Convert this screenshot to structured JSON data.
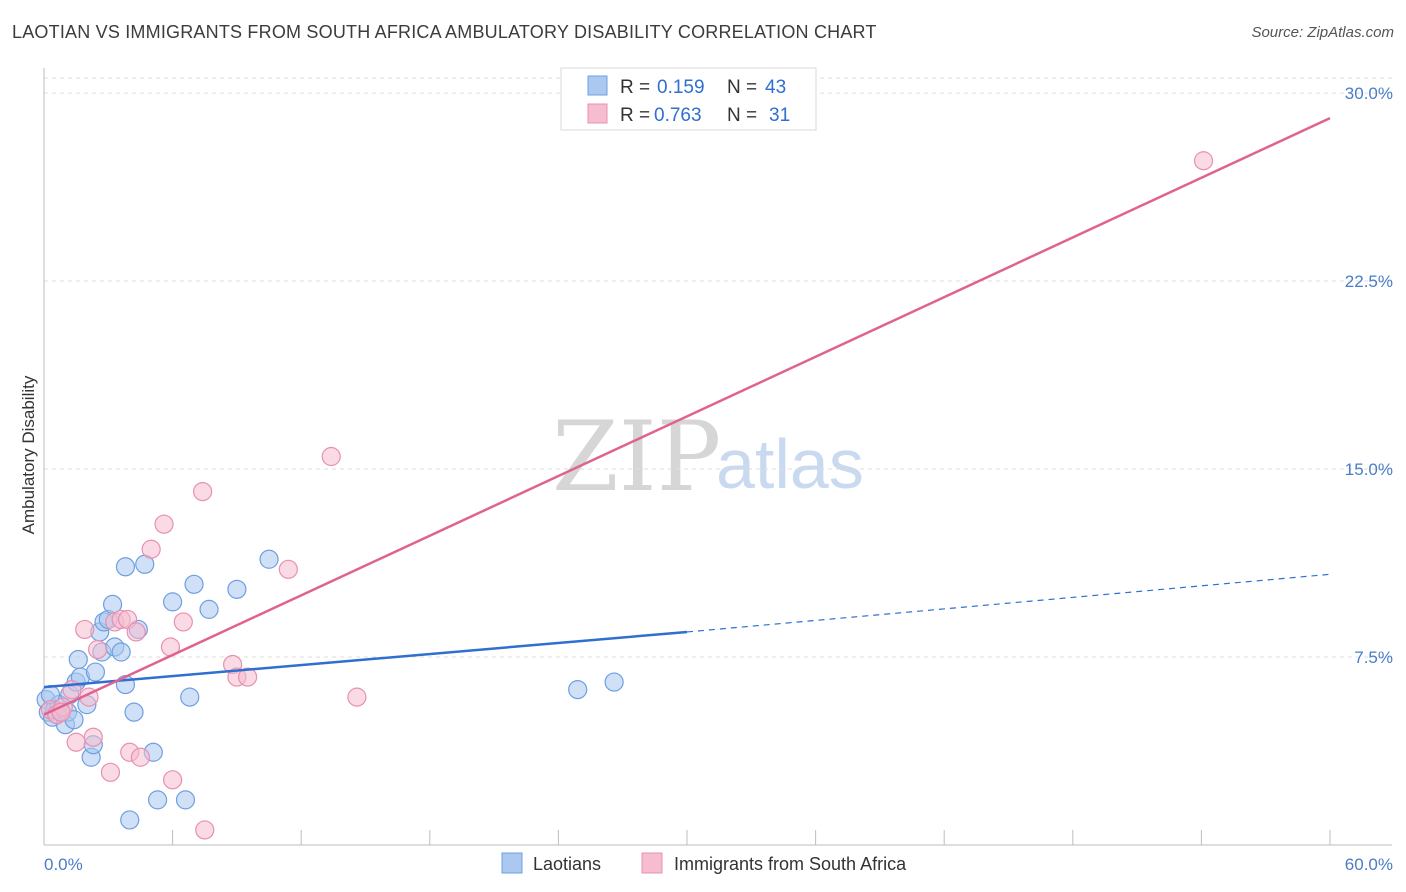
{
  "title": "LAOTIAN VS IMMIGRANTS FROM SOUTH AFRICA AMBULATORY DISABILITY CORRELATION CHART",
  "source": "Source: ZipAtlas.com",
  "watermark": {
    "zip": "ZIP",
    "atlas": "atlas"
  },
  "legend": {
    "r_label": "R =",
    "n_label": "N =",
    "rows": [
      {
        "r": "0.159",
        "n": "43"
      },
      {
        "r": "0.763",
        "n": "31"
      }
    ]
  },
  "colors": {
    "blue": "#2f6fd0",
    "blue_fill": "#aac8f0",
    "pink": "#e0638f",
    "pink_fill": "#f6bcd0",
    "grid": "#dddddd",
    "tick_text": "#4a7cc7"
  },
  "chart_data": {
    "type": "scatter",
    "title": "LAOTIAN VS IMMIGRANTS FROM SOUTH AFRICA AMBULATORY DISABILITY CORRELATION CHART",
    "xlabel": "",
    "ylabel": "Ambulatory Disability",
    "xlim": [
      0,
      60
    ],
    "ylim": [
      0,
      31
    ],
    "x_tick_labels": [
      {
        "value": 0,
        "label": "0.0%"
      },
      {
        "value": 60,
        "label": "60.0%"
      }
    ],
    "y_tick_labels": [
      {
        "value": 7.5,
        "label": "7.5%"
      },
      {
        "value": 15,
        "label": "15.0%"
      },
      {
        "value": 22.5,
        "label": "22.5%"
      },
      {
        "value": 30,
        "label": "30.0%"
      }
    ],
    "x_minor_ticks": [
      6,
      12,
      18,
      24,
      30,
      36,
      42,
      48,
      54,
      60
    ],
    "series": [
      {
        "name": "Laotians",
        "color": "#2f6fd0",
        "points": [
          [
            0.1,
            5.8
          ],
          [
            0.2,
            5.3
          ],
          [
            0.4,
            5.1
          ],
          [
            0.5,
            5.4
          ],
          [
            0.6,
            5.2
          ],
          [
            0.7,
            5.6
          ],
          [
            0.8,
            5.3
          ],
          [
            1.0,
            4.8
          ],
          [
            1.1,
            5.3
          ],
          [
            1.2,
            6.0
          ],
          [
            1.4,
            5.0
          ],
          [
            1.5,
            6.5
          ],
          [
            1.6,
            7.4
          ],
          [
            1.7,
            6.7
          ],
          [
            2.0,
            5.6
          ],
          [
            2.2,
            3.5
          ],
          [
            2.3,
            4.0
          ],
          [
            2.4,
            6.9
          ],
          [
            2.6,
            8.5
          ],
          [
            2.7,
            7.7
          ],
          [
            2.8,
            8.9
          ],
          [
            3.0,
            9.0
          ],
          [
            3.2,
            9.6
          ],
          [
            3.3,
            7.9
          ],
          [
            3.6,
            7.7
          ],
          [
            3.8,
            6.4
          ],
          [
            3.8,
            11.1
          ],
          [
            4.0,
            1.0
          ],
          [
            4.2,
            5.3
          ],
          [
            4.4,
            8.6
          ],
          [
            4.7,
            11.2
          ],
          [
            5.1,
            3.7
          ],
          [
            5.3,
            1.8
          ],
          [
            6.0,
            9.7
          ],
          [
            6.6,
            1.8
          ],
          [
            6.8,
            5.9
          ],
          [
            7.0,
            10.4
          ],
          [
            7.7,
            9.4
          ],
          [
            9.0,
            10.2
          ],
          [
            10.5,
            11.4
          ],
          [
            24.9,
            6.2
          ],
          [
            26.6,
            6.5
          ],
          [
            0.3,
            6.0
          ]
        ],
        "trend": {
          "x_start": 0,
          "y_start": 6.3,
          "x_end": 30,
          "y_end": 8.5,
          "x_dashed_end": 60,
          "y_dashed_end": 10.8
        }
      },
      {
        "name": "Immigrants from South Africa",
        "color": "#e0638f",
        "points": [
          [
            0.3,
            5.4
          ],
          [
            0.6,
            5.2
          ],
          [
            0.9,
            5.5
          ],
          [
            1.3,
            6.2
          ],
          [
            1.5,
            4.1
          ],
          [
            1.9,
            8.6
          ],
          [
            2.1,
            5.9
          ],
          [
            2.3,
            4.3
          ],
          [
            2.5,
            7.8
          ],
          [
            3.1,
            2.9
          ],
          [
            3.3,
            8.9
          ],
          [
            3.6,
            9.0
          ],
          [
            3.9,
            9.0
          ],
          [
            4.0,
            3.7
          ],
          [
            4.3,
            8.5
          ],
          [
            4.5,
            3.5
          ],
          [
            5.0,
            11.8
          ],
          [
            5.6,
            12.8
          ],
          [
            5.9,
            7.9
          ],
          [
            6.0,
            2.6
          ],
          [
            6.5,
            8.9
          ],
          [
            7.4,
            14.1
          ],
          [
            7.5,
            0.6
          ],
          [
            8.8,
            7.2
          ],
          [
            9.0,
            6.7
          ],
          [
            9.5,
            6.7
          ],
          [
            11.4,
            11.0
          ],
          [
            13.4,
            15.5
          ],
          [
            14.6,
            5.9
          ],
          [
            54.1,
            27.3
          ],
          [
            0.8,
            5.3
          ]
        ],
        "trend": {
          "x_start": 0,
          "y_start": 5.2,
          "x_end": 60,
          "y_end": 29.0
        }
      }
    ]
  },
  "bottom_legend": [
    {
      "label": "Laotians"
    },
    {
      "label": "Immigrants from South Africa"
    }
  ]
}
